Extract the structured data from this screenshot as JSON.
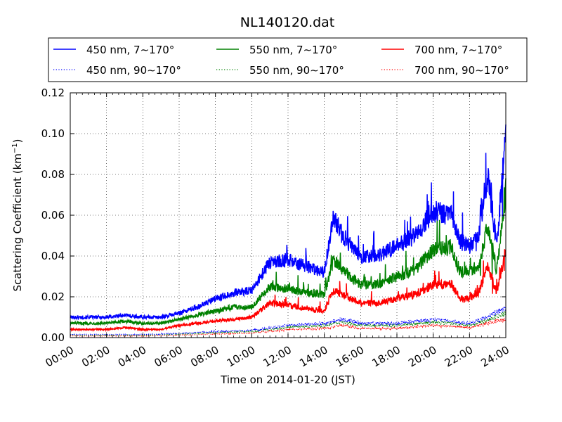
{
  "chart_data": {
    "type": "line",
    "title": "NL140120.dat",
    "xlabel": "Time on 2014-01-20 (JST)",
    "ylabel": "Scattering Coefficient (km",
    "ylabel_sup": "−1",
    "ylabel_close": ")",
    "xlim": [
      "2014-01-20 00:00",
      "2014-01-21 00:00"
    ],
    "ylim": [
      0,
      0.12
    ],
    "grid": true,
    "legend": "top, outside, 3 columns",
    "x_ticks": [
      "00:00",
      "02:00",
      "04:00",
      "06:00",
      "08:00",
      "10:00",
      "12:00",
      "14:00",
      "16:00",
      "18:00",
      "20:00",
      "22:00",
      "24:00"
    ],
    "y_ticks": [
      "0.00",
      "0.02",
      "0.04",
      "0.06",
      "0.08",
      "0.10",
      "0.12"
    ],
    "series": [
      {
        "name": "450 nm, 7∼170°",
        "color": "#0000ff",
        "style": "solid",
        "x": [
          "00:00",
          "01:00",
          "02:00",
          "03:00",
          "04:00",
          "05:00",
          "06:00",
          "07:00",
          "08:00",
          "09:00",
          "10:00",
          "11:00",
          "12:00",
          "13:00",
          "14:00",
          "14:30",
          "15:00",
          "16:00",
          "17:00",
          "18:00",
          "19:00",
          "20:00",
          "21:00",
          "21:30",
          "22:00",
          "22:30",
          "23:00",
          "23:30",
          "24:00"
        ],
        "values": [
          0.01,
          0.01,
          0.01,
          0.011,
          0.01,
          0.01,
          0.012,
          0.015,
          0.019,
          0.022,
          0.023,
          0.037,
          0.038,
          0.035,
          0.032,
          0.06,
          0.05,
          0.04,
          0.04,
          0.045,
          0.05,
          0.062,
          0.06,
          0.047,
          0.045,
          0.05,
          0.08,
          0.045,
          0.1
        ]
      },
      {
        "name": "550 nm, 7∼170°",
        "color": "#008000",
        "style": "solid",
        "x": [
          "00:00",
          "01:00",
          "02:00",
          "03:00",
          "04:00",
          "05:00",
          "06:00",
          "07:00",
          "08:00",
          "09:00",
          "10:00",
          "11:00",
          "12:00",
          "13:00",
          "14:00",
          "14:30",
          "15:00",
          "16:00",
          "17:00",
          "18:00",
          "19:00",
          "20:00",
          "21:00",
          "21:30",
          "22:00",
          "22:30",
          "23:00",
          "23:30",
          "24:00"
        ],
        "values": [
          0.007,
          0.007,
          0.007,
          0.008,
          0.007,
          0.007,
          0.009,
          0.011,
          0.013,
          0.015,
          0.015,
          0.025,
          0.024,
          0.022,
          0.021,
          0.038,
          0.033,
          0.026,
          0.026,
          0.03,
          0.033,
          0.043,
          0.044,
          0.032,
          0.033,
          0.035,
          0.055,
          0.033,
          0.072
        ]
      },
      {
        "name": "700 nm, 7∼170°",
        "color": "#ff0000",
        "style": "solid",
        "x": [
          "00:00",
          "01:00",
          "02:00",
          "03:00",
          "04:00",
          "05:00",
          "06:00",
          "07:00",
          "08:00",
          "09:00",
          "10:00",
          "11:00",
          "12:00",
          "13:00",
          "14:00",
          "14:30",
          "15:00",
          "16:00",
          "17:00",
          "18:00",
          "19:00",
          "20:00",
          "21:00",
          "21:30",
          "22:00",
          "22:30",
          "23:00",
          "23:30",
          "24:00"
        ],
        "values": [
          0.004,
          0.004,
          0.004,
          0.005,
          0.004,
          0.004,
          0.006,
          0.007,
          0.008,
          0.009,
          0.01,
          0.017,
          0.016,
          0.014,
          0.013,
          0.023,
          0.021,
          0.017,
          0.017,
          0.019,
          0.021,
          0.026,
          0.026,
          0.019,
          0.019,
          0.022,
          0.035,
          0.022,
          0.043
        ]
      },
      {
        "name": "450 nm, 90∼170°",
        "color": "#0000ff",
        "style": "dotted",
        "x": [
          "00:00",
          "02:00",
          "04:00",
          "06:00",
          "08:00",
          "10:00",
          "12:00",
          "14:00",
          "15:00",
          "16:00",
          "18:00",
          "20:00",
          "21:00",
          "22:00",
          "23:00",
          "24:00"
        ],
        "values": [
          0.0015,
          0.0015,
          0.0015,
          0.002,
          0.003,
          0.0035,
          0.006,
          0.007,
          0.009,
          0.007,
          0.007,
          0.009,
          0.008,
          0.007,
          0.01,
          0.015
        ]
      },
      {
        "name": "550 nm, 90∼170°",
        "color": "#008000",
        "style": "dotted",
        "x": [
          "00:00",
          "02:00",
          "04:00",
          "06:00",
          "08:00",
          "10:00",
          "12:00",
          "14:00",
          "15:00",
          "16:00",
          "18:00",
          "20:00",
          "21:00",
          "22:00",
          "23:00",
          "24:00"
        ],
        "values": [
          0.0012,
          0.0012,
          0.0012,
          0.0017,
          0.0025,
          0.003,
          0.005,
          0.006,
          0.0075,
          0.006,
          0.006,
          0.0075,
          0.007,
          0.006,
          0.0085,
          0.012
        ]
      },
      {
        "name": "700 nm, 90∼170°",
        "color": "#ff0000",
        "style": "dotted",
        "x": [
          "00:00",
          "02:00",
          "04:00",
          "06:00",
          "08:00",
          "10:00",
          "12:00",
          "14:00",
          "15:00",
          "16:00",
          "18:00",
          "20:00",
          "21:00",
          "22:00",
          "23:00",
          "24:00"
        ],
        "values": [
          0.0008,
          0.0008,
          0.0008,
          0.0012,
          0.0018,
          0.0022,
          0.004,
          0.0045,
          0.006,
          0.0045,
          0.0045,
          0.006,
          0.0055,
          0.005,
          0.007,
          0.009
        ]
      }
    ]
  }
}
